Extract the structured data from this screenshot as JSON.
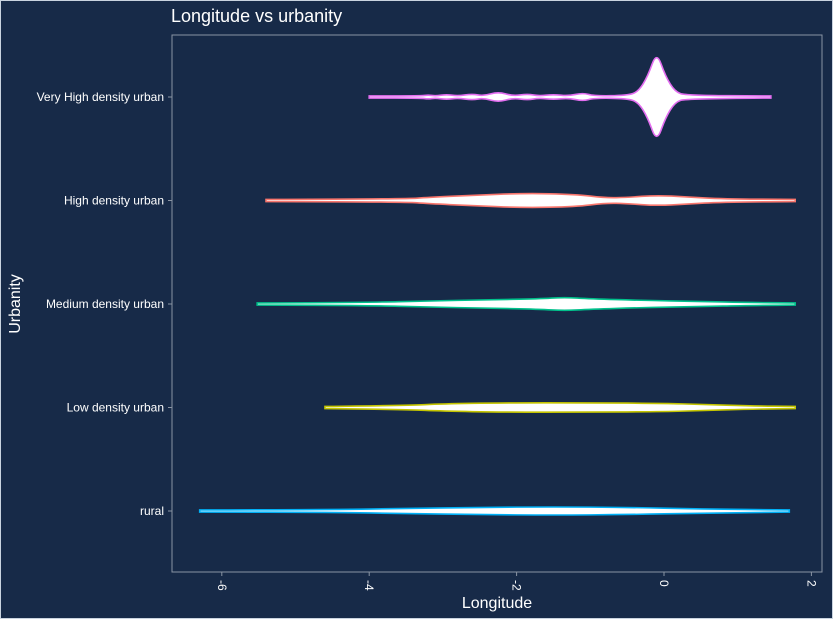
{
  "chart_data": {
    "type": "violin",
    "title": "Longitude vs urbanity",
    "xlabel": "Longitude",
    "ylabel": "Urbanity",
    "xlim": [
      -6.6,
      2.2
    ],
    "x_ticks": [
      -6,
      -4,
      -2,
      0,
      2
    ],
    "x_tick_labels": [
      "-6",
      "-4",
      "-2",
      "0",
      "2"
    ],
    "grid": false,
    "legend": "none",
    "categories": [
      "Very High density urban",
      "High density urban",
      "Medium density urban",
      "Low density urban",
      "rural"
    ],
    "fill_color": "#ffffff",
    "background_color": "#172a48",
    "series": [
      {
        "category": "Very High density urban",
        "color": "#e36ef0",
        "min": -4.0,
        "max": 1.45,
        "density": [
          [
            -4.0,
            0.01
          ],
          [
            -3.3,
            0.01
          ],
          [
            -3.2,
            0.02
          ],
          [
            -3.1,
            0.01
          ],
          [
            -2.95,
            0.025
          ],
          [
            -2.8,
            0.01
          ],
          [
            -2.6,
            0.03
          ],
          [
            -2.45,
            0.01
          ],
          [
            -2.25,
            0.05
          ],
          [
            -2.05,
            0.01
          ],
          [
            -1.85,
            0.03
          ],
          [
            -1.7,
            0.01
          ],
          [
            -1.5,
            0.025
          ],
          [
            -1.3,
            0.01
          ],
          [
            -1.1,
            0.04
          ],
          [
            -0.95,
            0.01
          ],
          [
            -0.5,
            0.015
          ],
          [
            -0.35,
            0.05
          ],
          [
            -0.22,
            0.2
          ],
          [
            -0.1,
            0.44
          ],
          [
            0.02,
            0.2
          ],
          [
            0.15,
            0.05
          ],
          [
            0.3,
            0.015
          ],
          [
            1.45,
            0.01
          ]
        ]
      },
      {
        "category": "High density urban",
        "color": "#f8766d",
        "min": -5.4,
        "max": 1.78,
        "density": [
          [
            -5.4,
            0.01
          ],
          [
            -3.5,
            0.015
          ],
          [
            -3.2,
            0.03
          ],
          [
            -2.6,
            0.05
          ],
          [
            -1.9,
            0.07
          ],
          [
            -1.2,
            0.06
          ],
          [
            -0.8,
            0.025
          ],
          [
            -0.5,
            0.03
          ],
          [
            -0.1,
            0.05
          ],
          [
            0.3,
            0.035
          ],
          [
            0.8,
            0.015
          ],
          [
            1.78,
            0.01
          ]
        ]
      },
      {
        "category": "Medium density urban",
        "color": "#00c08b",
        "min": -5.52,
        "max": 1.78,
        "density": [
          [
            -5.52,
            0.01
          ],
          [
            -4.0,
            0.015
          ],
          [
            -3.2,
            0.03
          ],
          [
            -2.4,
            0.04
          ],
          [
            -1.7,
            0.05
          ],
          [
            -1.35,
            0.065
          ],
          [
            -1.0,
            0.05
          ],
          [
            -0.3,
            0.035
          ],
          [
            0.5,
            0.025
          ],
          [
            1.1,
            0.015
          ],
          [
            1.78,
            0.01
          ]
        ]
      },
      {
        "category": "Low density urban",
        "color": "#c4c400",
        "min": -4.6,
        "max": 1.78,
        "density": [
          [
            -4.6,
            0.01
          ],
          [
            -3.5,
            0.02
          ],
          [
            -3.0,
            0.035
          ],
          [
            -2.2,
            0.045
          ],
          [
            -1.0,
            0.045
          ],
          [
            0.0,
            0.04
          ],
          [
            0.5,
            0.03
          ],
          [
            1.2,
            0.015
          ],
          [
            1.78,
            0.01
          ]
        ]
      },
      {
        "category": "rural",
        "color": "#00b0f6",
        "min": -6.3,
        "max": 1.7,
        "density": [
          [
            -6.3,
            0.01
          ],
          [
            -4.5,
            0.013
          ],
          [
            -3.5,
            0.025
          ],
          [
            -2.5,
            0.035
          ],
          [
            -1.5,
            0.04
          ],
          [
            -0.5,
            0.035
          ],
          [
            0.5,
            0.02
          ],
          [
            1.7,
            0.01
          ]
        ]
      }
    ]
  }
}
